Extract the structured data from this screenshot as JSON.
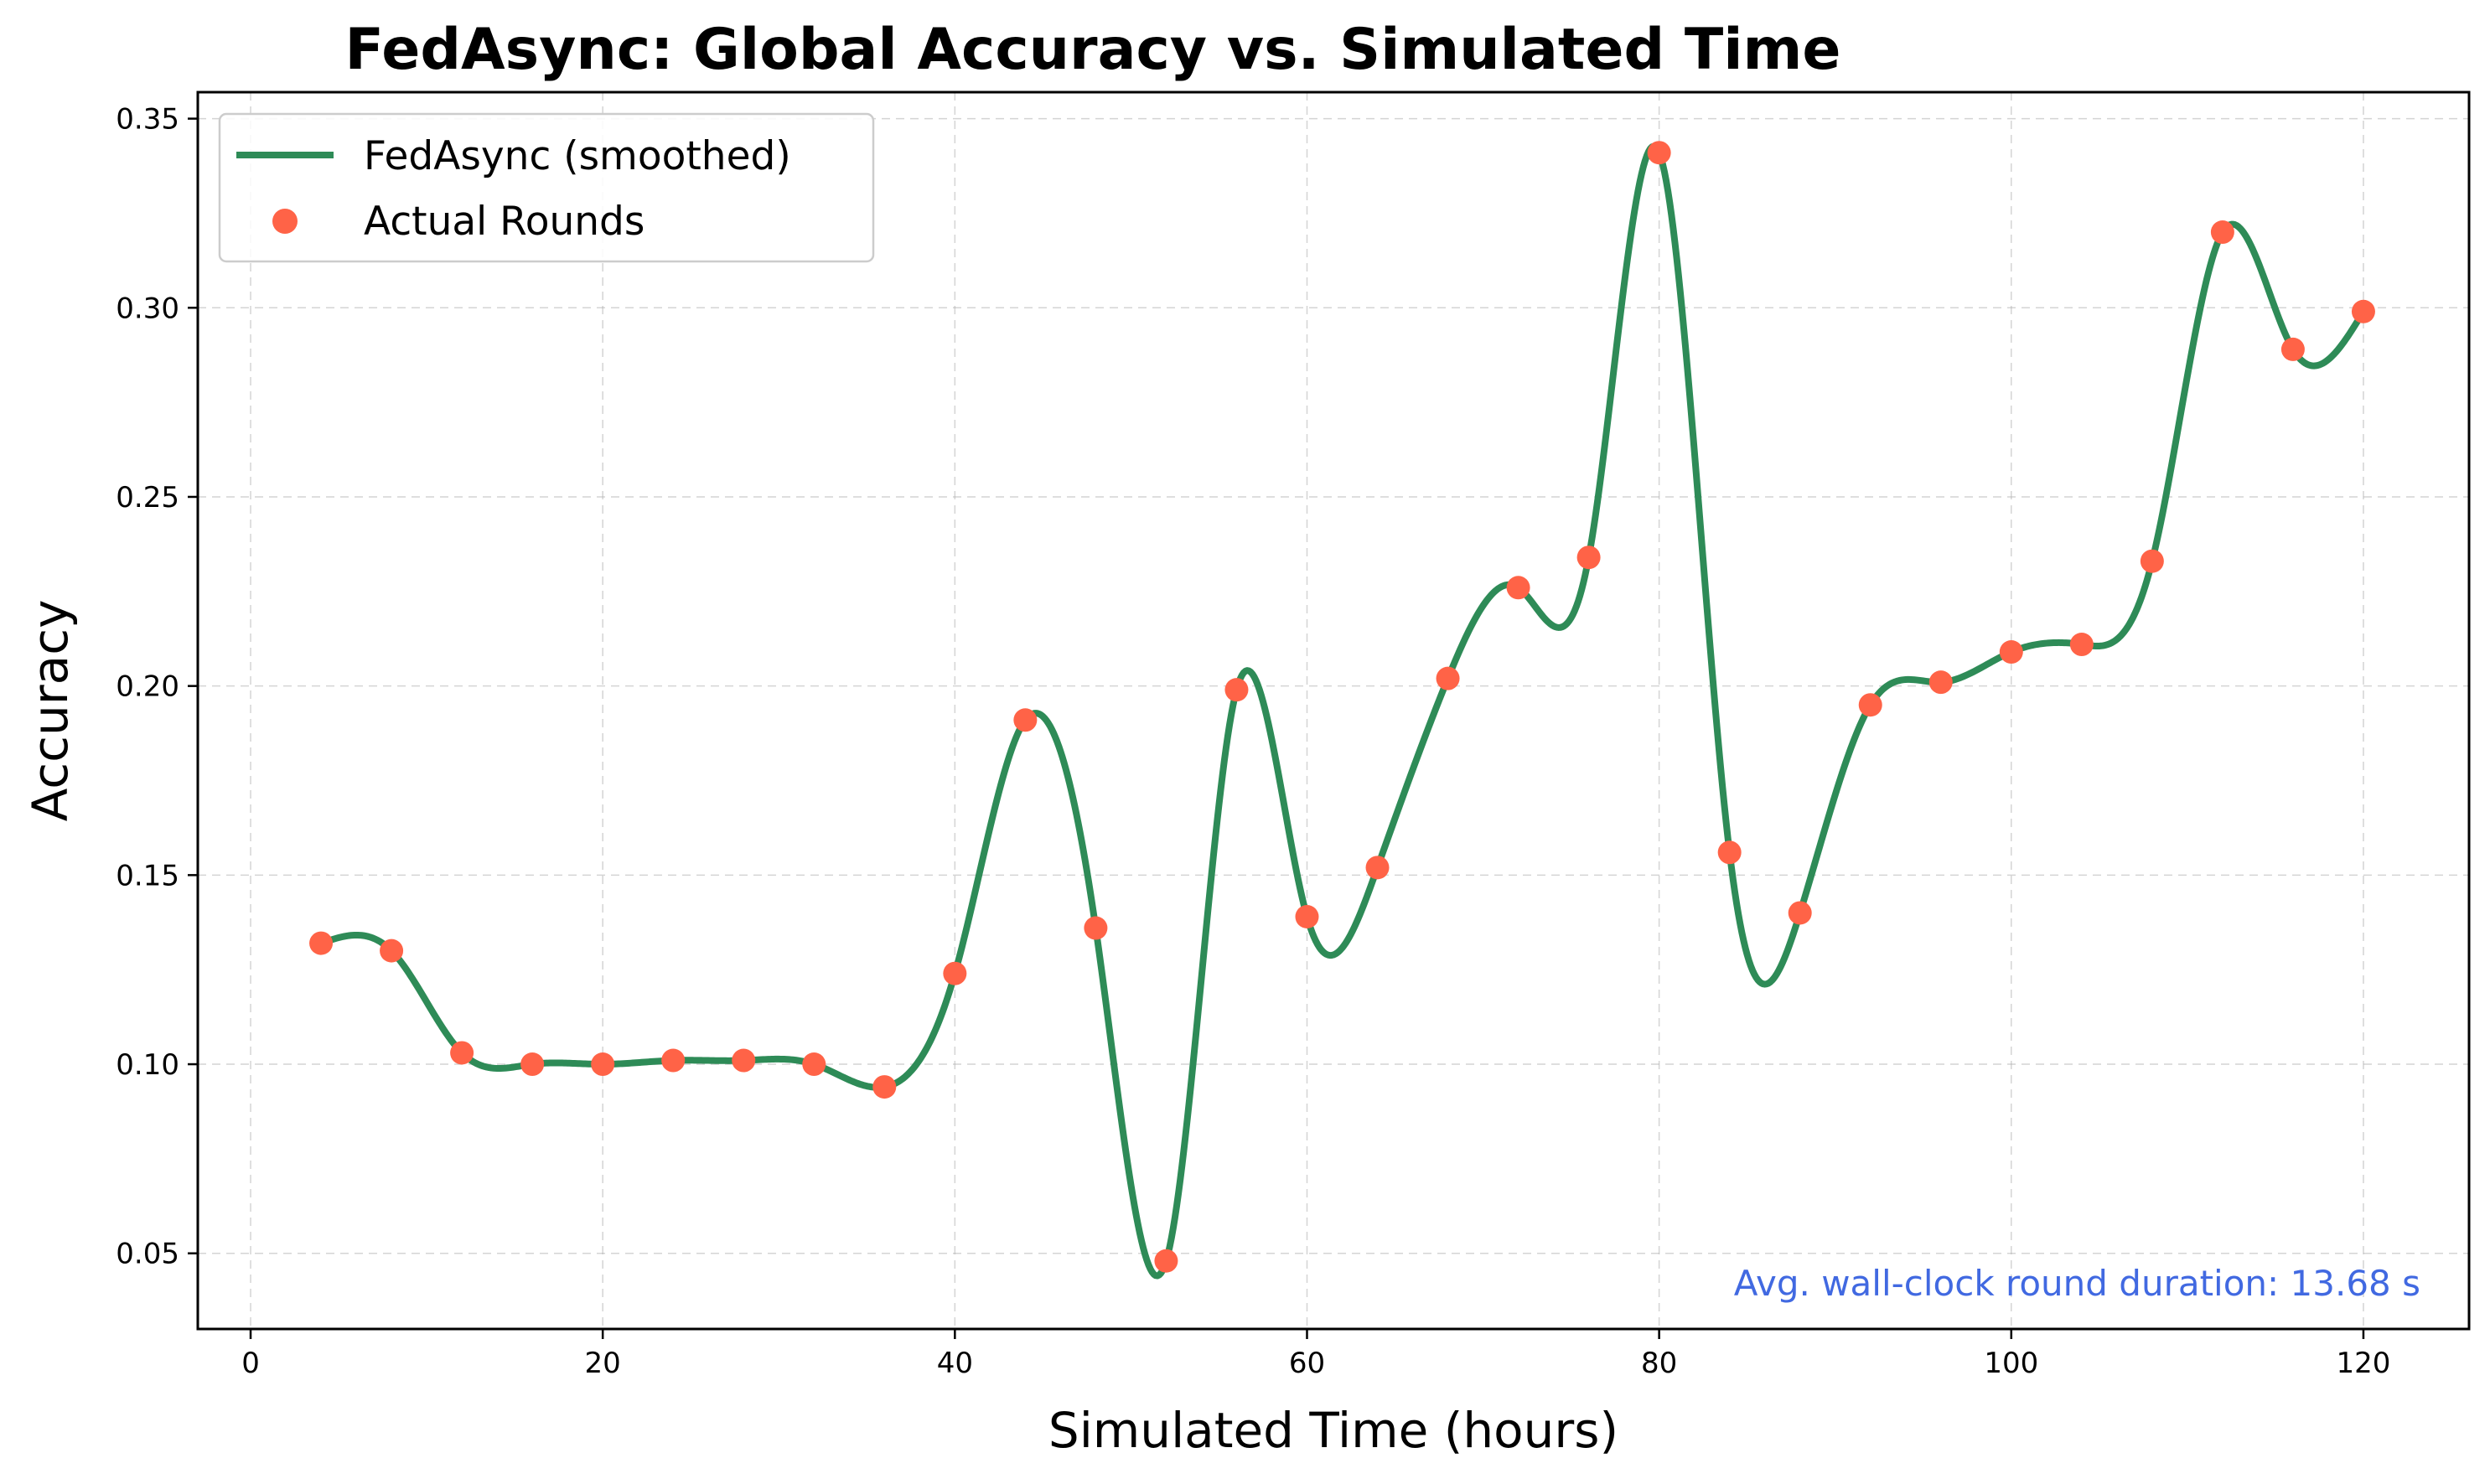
{
  "chart_data": {
    "type": "line",
    "title": "FedAsync: Global Accuracy vs. Simulated Time",
    "xlabel": "Simulated Time (hours)",
    "ylabel": "Accuracy",
    "xlim": [
      -3,
      126
    ],
    "ylim": [
      0.03,
      0.357
    ],
    "xticks": [
      0,
      20,
      40,
      60,
      80,
      100,
      120
    ],
    "xtick_labels": [
      "0",
      "20",
      "40",
      "60",
      "80",
      "100",
      "120"
    ],
    "yticks": [
      0.05,
      0.1,
      0.15,
      0.2,
      0.25,
      0.3,
      0.35
    ],
    "ytick_labels": [
      "0.05",
      "0.10",
      "0.15",
      "0.20",
      "0.25",
      "0.30",
      "0.35"
    ],
    "grid": true,
    "legend_position": "top-left",
    "series": [
      {
        "name": "FedAsync (smoothed)",
        "kind": "line",
        "color": "#2e8b57",
        "x": [
          4,
          8,
          12,
          16,
          20,
          24,
          28,
          32,
          36,
          40,
          44,
          48,
          52,
          56,
          60,
          64,
          68,
          72,
          76,
          80,
          84,
          88,
          92,
          96,
          100,
          104,
          108,
          112,
          116,
          120
        ],
        "y": [
          0.132,
          0.13,
          0.103,
          0.1,
          0.1,
          0.101,
          0.101,
          0.1,
          0.094,
          0.124,
          0.191,
          0.136,
          0.048,
          0.199,
          0.139,
          0.152,
          0.202,
          0.226,
          0.234,
          0.341,
          0.156,
          0.14,
          0.195,
          0.201,
          0.209,
          0.211,
          0.233,
          0.32,
          0.289,
          0.299
        ]
      },
      {
        "name": "Actual Rounds",
        "kind": "scatter",
        "color": "#ff6347",
        "x": [
          4,
          8,
          12,
          16,
          20,
          24,
          28,
          32,
          36,
          40,
          44,
          48,
          52,
          56,
          60,
          64,
          68,
          72,
          76,
          80,
          84,
          88,
          92,
          96,
          100,
          104,
          108,
          112,
          116,
          120
        ],
        "y": [
          0.132,
          0.13,
          0.103,
          0.1,
          0.1,
          0.101,
          0.101,
          0.1,
          0.094,
          0.124,
          0.191,
          0.136,
          0.048,
          0.199,
          0.139,
          0.152,
          0.202,
          0.226,
          0.234,
          0.341,
          0.156,
          0.14,
          0.195,
          0.201,
          0.209,
          0.211,
          0.233,
          0.32,
          0.289,
          0.299
        ]
      }
    ],
    "annotation": {
      "text": "Avg. wall-clock round duration: 13.68 s",
      "color": "#4169e1",
      "position": "bottom-right"
    }
  }
}
